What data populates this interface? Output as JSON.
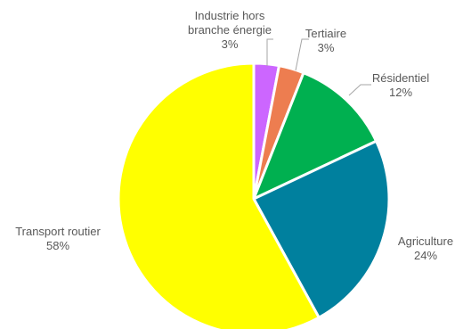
{
  "chart_data": {
    "type": "pie",
    "title": "",
    "legend": "none",
    "categories": [
      "Industrie hors branche énergie",
      "Tertiaire",
      "Résidentiel",
      "Agriculture",
      "Transport routier"
    ],
    "values": [
      3,
      3,
      12,
      24,
      58
    ],
    "percent_labels": [
      "3%",
      "3%",
      "12%",
      "24%",
      "58%"
    ],
    "label_lines": [
      [
        "Industrie hors",
        "branche énergie",
        "3%"
      ],
      [
        "Tertiaire",
        "3%"
      ],
      [
        "Résidentiel",
        "12%"
      ],
      [
        "Agriculture",
        "24%"
      ],
      [
        "Transport routier",
        "58%"
      ]
    ],
    "colors": [
      "#cc66ff",
      "#ed7d50",
      "#00b050",
      "#00809e",
      "#ffff00"
    ]
  }
}
